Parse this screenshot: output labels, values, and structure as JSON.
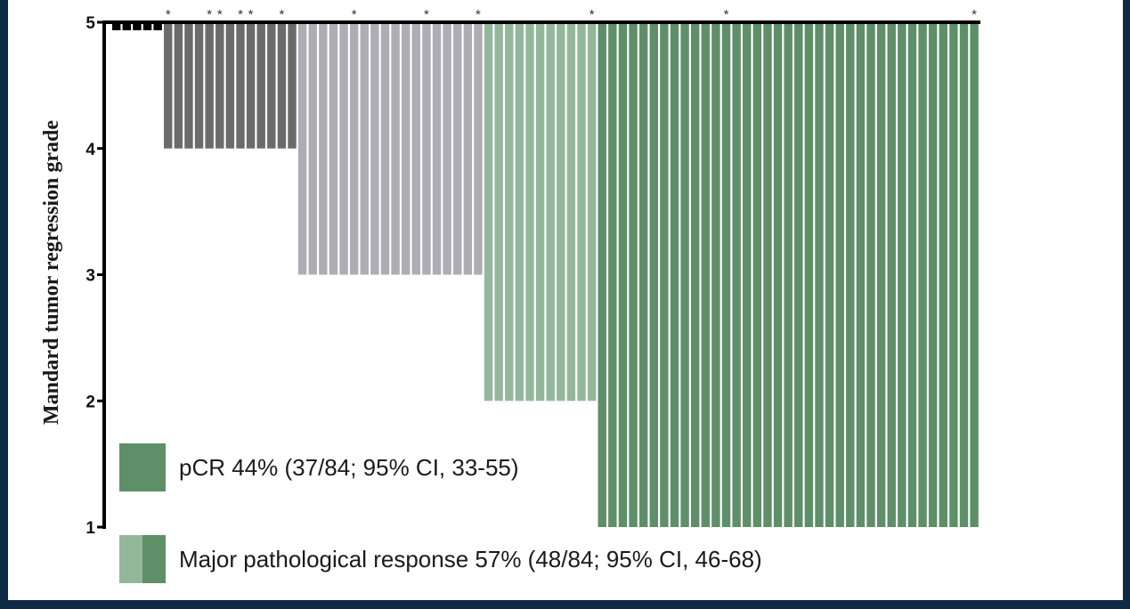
{
  "colors": {
    "grade5": "#6b6b6b",
    "grade4": "#adadb3",
    "grade3": "#94b79c",
    "grade2": "#5e8f68",
    "axis": "#000000",
    "frame": "#0f2a44"
  },
  "chart_data": {
    "type": "bar",
    "ylabel": "Mandard tumor regression grade",
    "ylim": [
      1,
      5
    ],
    "yticks": [
      1,
      2,
      3,
      4,
      5
    ],
    "n_patients": 84,
    "groups": [
      {
        "id": "g5a",
        "value": 5,
        "count": 5,
        "colorKey": "axis"
      },
      {
        "id": "g5b",
        "value": 4,
        "count": 13,
        "colorKey": "grade5"
      },
      {
        "id": "g4",
        "value": 3,
        "count": 18,
        "colorKey": "grade4"
      },
      {
        "id": "g3",
        "value": 2,
        "count": 11,
        "colorKey": "grade3"
      },
      {
        "id": "g2",
        "value": 1,
        "count": 37,
        "colorKey": "grade2"
      }
    ],
    "marked_bars": [
      6,
      10,
      11,
      13,
      14,
      17,
      24,
      31,
      36,
      47,
      60,
      84
    ],
    "marker": "*",
    "legend": [
      {
        "label": "pCR 44% (37/84; 95% CI, 33-55)",
        "colors": [
          "grade2"
        ]
      },
      {
        "label": "Major pathological response 57% (48/84; 95% CI, 46-68)",
        "colors": [
          "grade3",
          "grade2"
        ]
      }
    ]
  }
}
